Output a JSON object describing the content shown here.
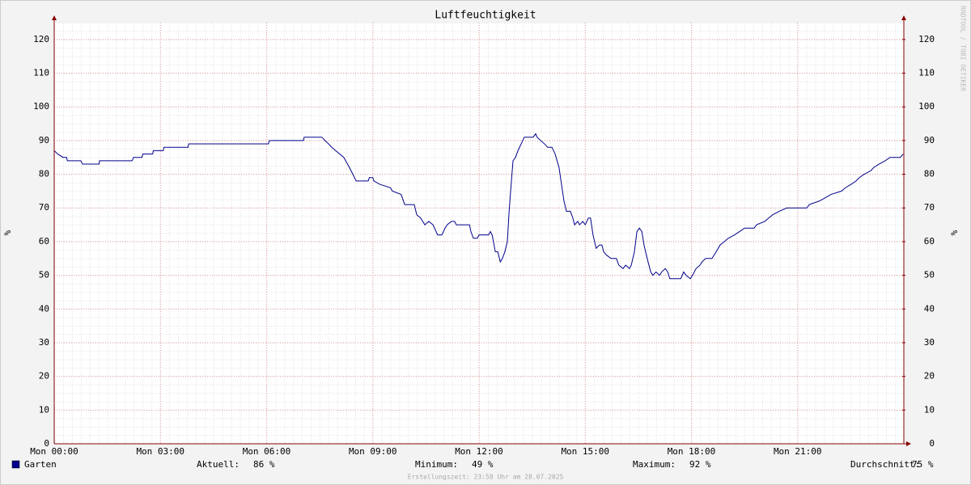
{
  "chart_data": {
    "type": "line",
    "title": "Luftfeuchtigkeit",
    "ylabel": "%",
    "y2label": "%",
    "watermark": "RRDTOOL / TOBI OETIKER",
    "footer": "Erstellungszeit: 23:58 Uhr am 28.07.2025",
    "x": [
      0,
      0.1,
      0.25,
      0.35,
      0.37,
      0.75,
      0.8,
      1.27,
      1.28,
      2.2,
      2.24,
      2.48,
      2.5,
      2.78,
      2.8,
      3.08,
      3.1,
      3.78,
      3.8,
      6.05,
      6.08,
      7.04,
      7.06,
      7.56,
      7.65,
      7.75,
      7.84,
      7.95,
      8.18,
      8.34,
      8.53,
      8.87,
      8.9,
      9.0,
      9.03,
      9.2,
      9.5,
      9.55,
      9.8,
      9.9,
      10.17,
      10.24,
      10.35,
      10.47,
      10.58,
      10.7,
      10.83,
      10.95,
      11.04,
      11.1,
      11.22,
      11.31,
      11.36,
      11.73,
      11.77,
      11.84,
      11.95,
      12.0,
      12.27,
      12.32,
      12.37,
      12.46,
      12.53,
      12.6,
      12.66,
      12.73,
      12.8,
      12.85,
      12.9,
      12.96,
      13.03,
      13.1,
      13.19,
      13.28,
      13.53,
      13.6,
      13.64,
      13.74,
      13.85,
      13.94,
      14.06,
      14.15,
      14.26,
      14.33,
      14.4,
      14.47,
      14.58,
      14.65,
      14.7,
      14.79,
      14.84,
      14.93,
      15.0,
      15.09,
      15.15,
      15.22,
      15.31,
      15.4,
      15.47,
      15.52,
      15.6,
      15.73,
      15.88,
      15.95,
      16.07,
      16.14,
      16.25,
      16.3,
      16.39,
      16.46,
      16.53,
      16.6,
      16.66,
      16.75,
      16.85,
      16.91,
      17.0,
      17.1,
      17.16,
      17.26,
      17.33,
      17.39,
      17.7,
      17.78,
      17.85,
      17.97,
      18.03,
      18.13,
      18.24,
      18.3,
      18.4,
      18.58,
      18.7,
      18.81,
      18.93,
      19.04,
      19.22,
      19.36,
      19.5,
      19.77,
      19.84,
      20.07,
      20.18,
      20.3,
      20.48,
      20.69,
      21.26,
      21.33,
      21.6,
      21.78,
      21.94,
      22.24,
      22.35,
      22.51,
      22.65,
      22.74,
      22.88,
      23.06,
      23.15,
      23.3,
      23.47,
      23.61,
      23.9,
      23.98
    ],
    "series": [
      {
        "name": "Garten",
        "color": "#00008b",
        "values": [
          87,
          86,
          85,
          85,
          84,
          84,
          83,
          83,
          84,
          84,
          85,
          85,
          86,
          86,
          87,
          87,
          88,
          88,
          89,
          89,
          90,
          90,
          91,
          91,
          90,
          89,
          88,
          87,
          85,
          82,
          78,
          78,
          79,
          79,
          78,
          77,
          76,
          75,
          74,
          71,
          71,
          68,
          67,
          65,
          66,
          65,
          62,
          62,
          64,
          65,
          66,
          66,
          65,
          65,
          63,
          61,
          61,
          62,
          62,
          63,
          62,
          57,
          57,
          54,
          55,
          57,
          60,
          69,
          76,
          84,
          85,
          87,
          89,
          91,
          91,
          92,
          91,
          90,
          89,
          88,
          88,
          86,
          82,
          77,
          72,
          69,
          69,
          67,
          65,
          66,
          65,
          66,
          65,
          67,
          67,
          62,
          58,
          59,
          59,
          57,
          56,
          55,
          55,
          53,
          52,
          53,
          52,
          53,
          57,
          63,
          64,
          63,
          59,
          55,
          51,
          50,
          51,
          50,
          51,
          52,
          51,
          49,
          49,
          51,
          50,
          49,
          50,
          52,
          53,
          54,
          55,
          55,
          57,
          59,
          60,
          61,
          62,
          63,
          64,
          64,
          65,
          66,
          67,
          68,
          69,
          70,
          70,
          71,
          72,
          73,
          74,
          75,
          76,
          77,
          78,
          79,
          80,
          81,
          82,
          83,
          84,
          85,
          85,
          86
        ]
      }
    ],
    "xlim": [
      0,
      24
    ],
    "xticks": [
      {
        "value": 0,
        "label": "Mon 00:00"
      },
      {
        "value": 3,
        "label": "Mon 03:00"
      },
      {
        "value": 6,
        "label": "Mon 06:00"
      },
      {
        "value": 9,
        "label": "Mon 09:00"
      },
      {
        "value": 12,
        "label": "Mon 12:00"
      },
      {
        "value": 15,
        "label": "Mon 15:00"
      },
      {
        "value": 18,
        "label": "Mon 18:00"
      },
      {
        "value": 21,
        "label": "Mon 21:00"
      }
    ],
    "ylim": [
      0,
      125
    ],
    "yticks": [
      0,
      10,
      20,
      30,
      40,
      50,
      60,
      70,
      80,
      90,
      100,
      110,
      120
    ],
    "y2lim": [
      0,
      125
    ],
    "y2ticks": [
      0,
      10,
      20,
      30,
      40,
      50,
      60,
      70,
      80,
      90,
      100,
      110,
      120
    ],
    "grid": true,
    "stats": [
      {
        "label": "Aktuell:",
        "value": 86,
        "value_label": "86 %"
      },
      {
        "label": "Minimum:",
        "value": 49,
        "value_label": "49 %"
      },
      {
        "label": "Maximum:",
        "value": 92,
        "value_label": "92 %"
      },
      {
        "label": "Durchschnitt:",
        "value": 75,
        "value_label": "75 %"
      }
    ]
  }
}
